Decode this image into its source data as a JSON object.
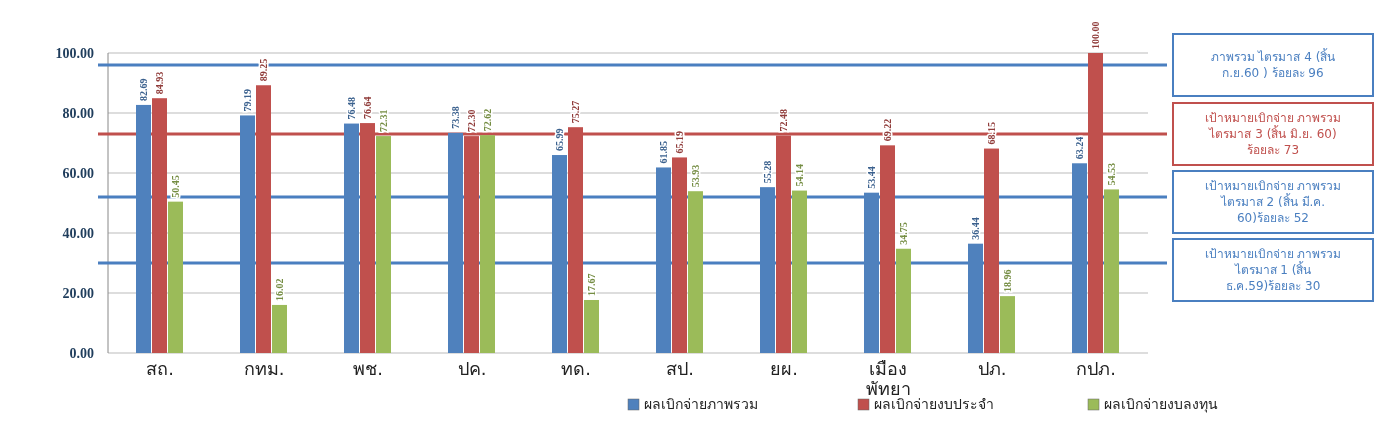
{
  "chart_data": {
    "type": "bar",
    "categories": [
      "สถ.",
      "กทม.",
      "พช.",
      "ปค.",
      "ทด.",
      "สป.",
      "ยผ.",
      "เมือง พัทยา",
      "ปภ.",
      "กปภ."
    ],
    "series": [
      {
        "name": "ผลเบิกจ่ายภาพรวม",
        "color": "#4f81bd",
        "values": [
          82.69,
          79.19,
          76.48,
          73.38,
          65.99,
          61.85,
          55.28,
          53.44,
          36.44,
          63.24
        ],
        "value_labels": [
          "82.69",
          "79.19",
          "76.48",
          "73.38",
          "65.99",
          "61.85",
          "55.28",
          "53.44",
          "36.44",
          "63.24"
        ]
      },
      {
        "name": "ผลเบิกจ่ายงบประจำ",
        "color": "#c0504d",
        "values": [
          84.93,
          89.25,
          76.64,
          72.3,
          75.27,
          65.19,
          72.48,
          69.22,
          68.15,
          100.0
        ],
        "value_labels": [
          "84.93",
          "89.25",
          "76.64",
          "72.30",
          "75.27",
          "65.19",
          "72.48",
          "69.22",
          "68.15",
          "100.00"
        ]
      },
      {
        "name": "ผลเบิกจ่ายงบลงทุน",
        "color": "#9bbb59",
        "values": [
          50.45,
          16.02,
          72.31,
          72.62,
          17.67,
          53.93,
          54.14,
          34.75,
          18.96,
          54.53
        ],
        "value_labels": [
          "50.45",
          "16.02",
          "72.31",
          "72.62",
          "17.67",
          "53.93",
          "54.14",
          "34.75",
          "18.96",
          "54.53"
        ]
      }
    ],
    "ylim": [
      0,
      100
    ],
    "yticks": [
      {
        "value": 0,
        "label": "0.00"
      },
      {
        "value": 20,
        "label": "20.00"
      },
      {
        "value": 40,
        "label": "40.00"
      },
      {
        "value": 60,
        "label": "60.00"
      },
      {
        "value": 80,
        "label": "80.00"
      },
      {
        "value": 100,
        "label": "100.00"
      }
    ],
    "grid": "y",
    "legend": "bottom",
    "ref_lines": [
      {
        "axis": "y",
        "value": 96,
        "label": "ภาพรวม ไตรมาส 4 (สิ้น ก.ย.60 ) ร้อยละ 96",
        "color": "#4a7fc0"
      },
      {
        "axis": "y",
        "value": 73,
        "label": "เป้าหมายเบิกจ่าย ภาพรวม ไตรมาส 3 (สิ้น มิ.ย. 60) ร้อยละ 73",
        "color": "#c0504d"
      },
      {
        "axis": "y",
        "value": 52,
        "label": "เป้าหมายเบิกจ่าย ภาพรวม ไตรมาส 2 (สิ้น มี.ค. 60)ร้อยละ 52",
        "color": "#4a7fc0"
      },
      {
        "axis": "y",
        "value": 30,
        "label": "เป้าหมายเบิกจ่าย ภาพรวม ไตรมาส 1 (สิ้น ธ.ค.59)ร้อยละ 30",
        "color": "#4a7fc0"
      }
    ]
  }
}
